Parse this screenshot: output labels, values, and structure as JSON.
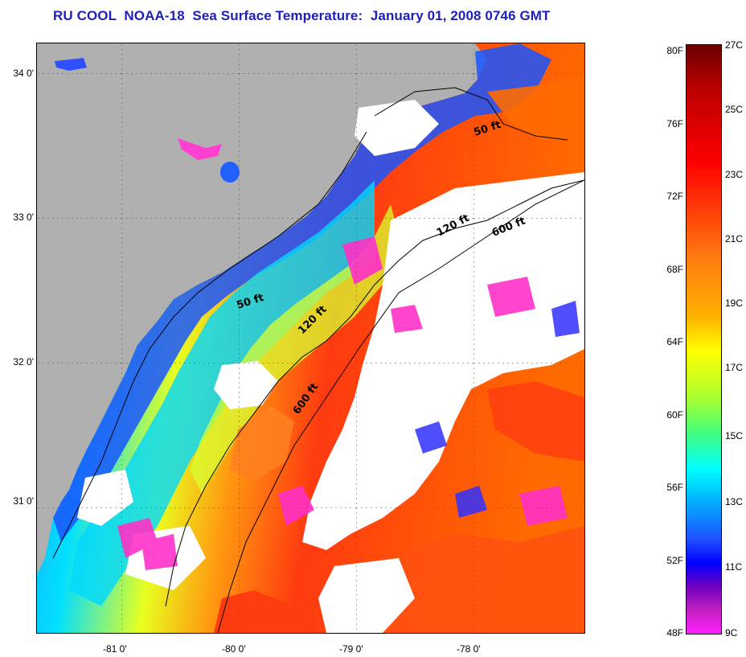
{
  "title": "RU COOL  NOAA-18  Sea Surface Temperature:  January 01, 2008 0746 GMT",
  "latitude_labels": [
    "34 0'",
    "33 0'",
    "32 0'",
    "31 0'"
  ],
  "longitude_labels": [
    "-81 0'",
    "-80 0'",
    "-79 0'",
    "-78 0'"
  ],
  "contours": {
    "shallow_north": "50 ft",
    "shallow_south": "50 ft",
    "mid_north": "120 ft",
    "mid_south": "120 ft",
    "deep_north": "600 ft",
    "deep_south": "600 ft"
  },
  "colorbar": {
    "fahrenheit_ticks": [
      "80F",
      "76F",
      "72F",
      "68F",
      "64F",
      "60F",
      "56F",
      "52F",
      "48F"
    ],
    "celsius_ticks": [
      "27C",
      "25C",
      "23C",
      "21C",
      "19C",
      "17C",
      "15C",
      "13C",
      "11C",
      "9C"
    ]
  },
  "colors": {
    "title": "#1f1fb8",
    "land": "#b0b0b0",
    "cloud": "#ffffff"
  }
}
